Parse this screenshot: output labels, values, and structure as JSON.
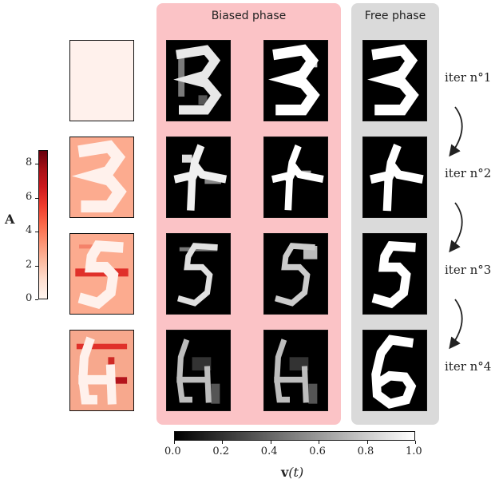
{
  "panels": {
    "biased_title": "Biased phase",
    "free_title": "Free phase",
    "biased_color": "#fbc3c6",
    "free_color": "#dadada"
  },
  "iterations": [
    "iter n°1",
    "iter n°2",
    "iter n°3",
    "iter n°4"
  ],
  "colorbar_A": {
    "label": "A",
    "ticks": [
      "0",
      "2",
      "4",
      "6",
      "8"
    ],
    "range": [
      0,
      8.8
    ],
    "cmap": "Reds"
  },
  "colorbar_v": {
    "label_main": "v",
    "label_arg": "(t)",
    "ticks": [
      "0.0",
      "0.2",
      "0.4",
      "0.6",
      "0.8",
      "1.0"
    ],
    "range": [
      0,
      1
    ],
    "cmap": "gray"
  },
  "colors": {
    "arrow": "#222222",
    "tile_border": "#111111"
  }
}
